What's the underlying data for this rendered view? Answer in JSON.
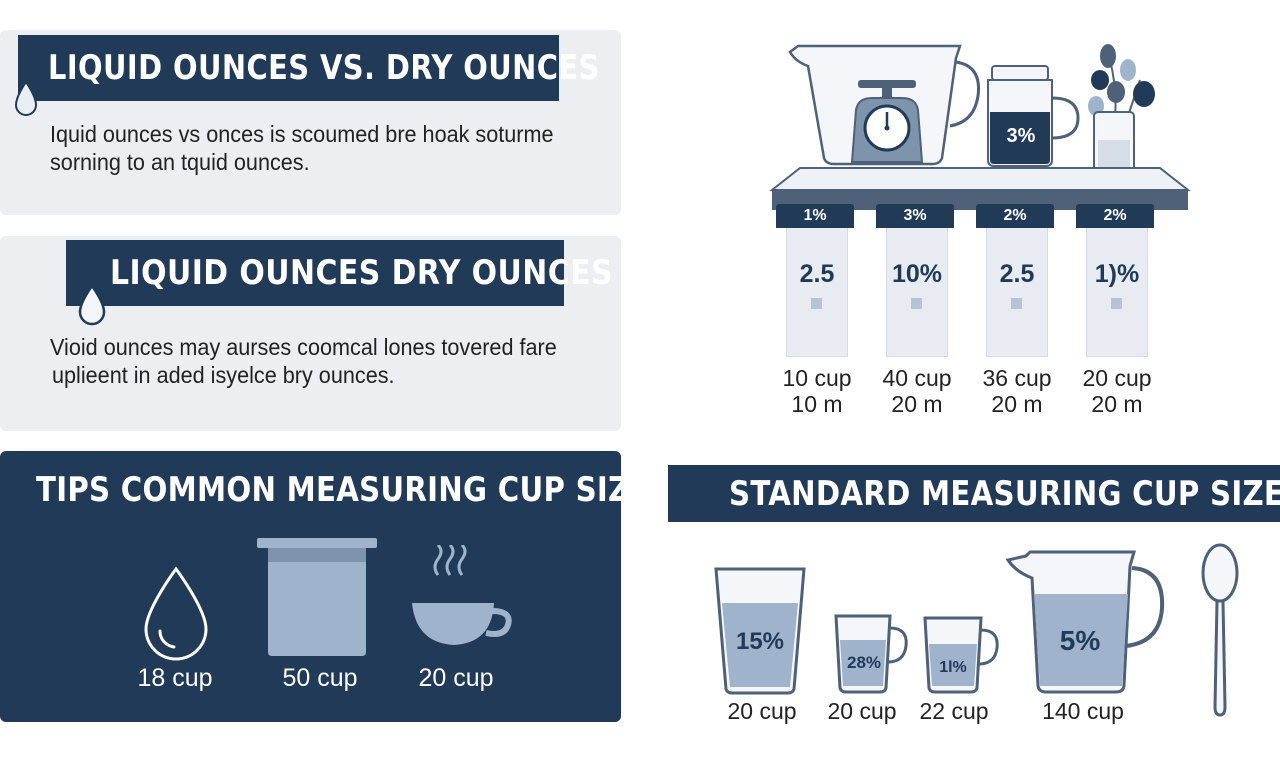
{
  "sections": {
    "liquid_vs_dry": {
      "title": "LIQUID OUNCES VS. DRY OUNCES",
      "line1": "Iquid ounces vs onces is scoumed bre hoak soturme",
      "line2": "sorning to an tquid ounces."
    },
    "liquid_dry": {
      "title": "LIQUID OUNCES DRY OUNCES",
      "line1": "Vioid ounces may aurses coomcal lones tovered fare",
      "line2": "uplieent in aded isyelce bry ounces."
    },
    "tips": {
      "title": "TIPS COMMON MEASURING CUP SIZES",
      "items": [
        {
          "icon": "water-drop-icon",
          "label": "18 cup"
        },
        {
          "icon": "measuring-container-icon",
          "label": "50 cup"
        },
        {
          "icon": "coffee-cup-icon",
          "label": "20 cup"
        }
      ]
    },
    "shelf": {
      "jar_label": "3%",
      "columns": [
        {
          "tag": "1%",
          "value": "2.5",
          "line1": "10 cup",
          "line2": "10 m"
        },
        {
          "tag": "3%",
          "value": "10%",
          "line1": "40 cup",
          "line2": "20 m"
        },
        {
          "tag": "2%",
          "value": "2.5",
          "line1": "36 cup",
          "line2": "20 m"
        },
        {
          "tag": "2%",
          "value": "1)%",
          "line1": "20 cup",
          "line2": "20 m"
        }
      ]
    },
    "standard": {
      "title": "STANDARD MEASURING CUP SIZES",
      "cups": [
        {
          "inside": "15%",
          "label": "20 cup"
        },
        {
          "inside": "28%",
          "label": "20 cup"
        },
        {
          "inside": "1l%",
          "label": "22 cup"
        },
        {
          "inside": "5%",
          "label": "140 cup"
        }
      ]
    }
  },
  "colors": {
    "navy": "#213a58",
    "card_bg": "#eceef2",
    "liquid": "#9fb4cc",
    "steel": "#4e6178"
  }
}
